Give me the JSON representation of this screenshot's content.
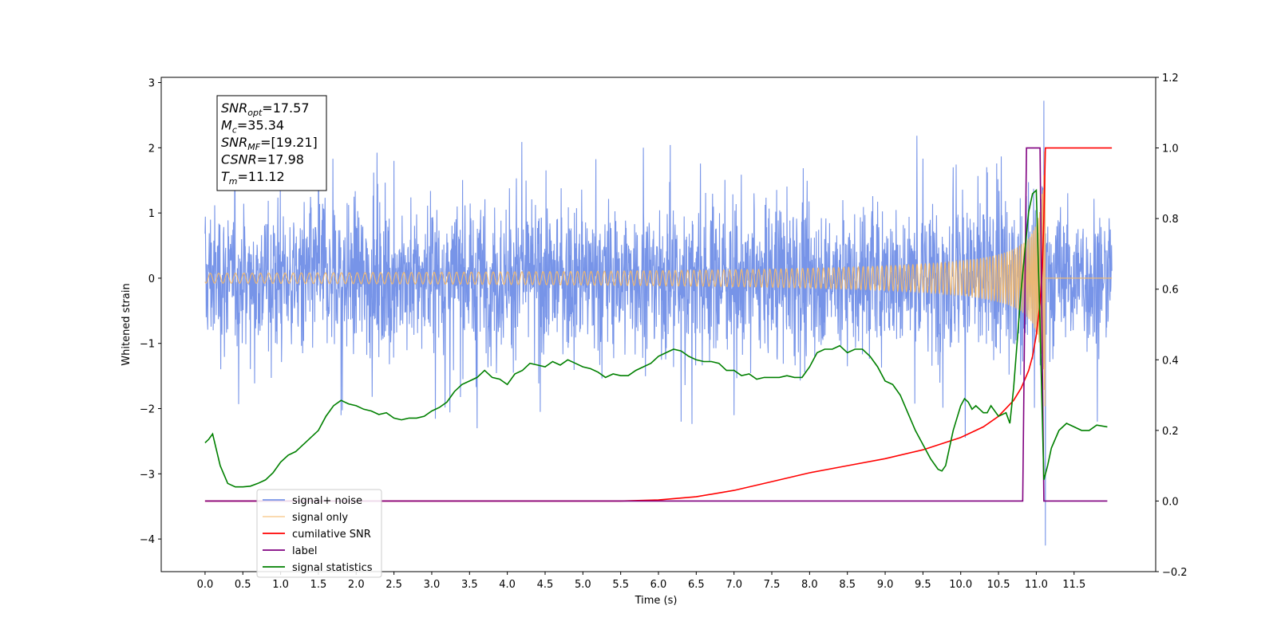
{
  "chart_data": {
    "type": "line",
    "xlabel": "Time (s)",
    "ylabel": "Whitened strain",
    "xlim": [
      -0.58,
      12.58
    ],
    "ylim": [
      -4.5,
      3.08
    ],
    "ylim_right": [
      -0.2,
      1.2
    ],
    "x_ticks": [
      "0.0",
      "0.5",
      "1.0",
      "1.5",
      "2.0",
      "2.5",
      "3.0",
      "3.5",
      "4.0",
      "4.5",
      "5.0",
      "5.5",
      "6.0",
      "6.5",
      "7.0",
      "7.5",
      "8.0",
      "8.5",
      "9.0",
      "9.5",
      "10.0",
      "10.5",
      "11.0",
      "11.5"
    ],
    "y_ticks_left": [
      "3",
      "2",
      "1",
      "0",
      "−1",
      "−2",
      "−3",
      "−4"
    ],
    "y_ticks_right": [
      "1.2",
      "1.0",
      "0.8",
      "0.6",
      "0.4",
      "0.2",
      "0.0",
      "−0.2"
    ],
    "grid": false,
    "legend_position": "lower-left",
    "info_box": {
      "lines": [
        {
          "base": "SNR",
          "sub": "opt",
          "value": "=17.57"
        },
        {
          "base": "M",
          "sub": "c",
          "value": "=35.34"
        },
        {
          "base": "SNR",
          "sub": "MF",
          "value": "=[19.21]"
        },
        {
          "base": "CSNR",
          "sub": "",
          "value": "=17.98"
        },
        {
          "base": "T",
          "sub": "m",
          "value": "=11.12"
        }
      ]
    },
    "series": [
      {
        "name": "signal+ noise",
        "axis": "left",
        "color": "#6b8be6",
        "note_range": {
          "x_start": 0.0,
          "x_end": 12.0
        },
        "envelope_typical": [
          -1.3,
          1.4
        ],
        "spike_points": [
          [
            1.5,
            1.5
          ],
          [
            1.8,
            -2.1
          ],
          [
            2.5,
            1.8
          ],
          [
            3.6,
            -2.3
          ],
          [
            5.8,
            2.0
          ],
          [
            6.3,
            -2.2
          ],
          [
            7.0,
            -2.1
          ],
          [
            9.9,
            1.7
          ],
          [
            11.1,
            2.72
          ],
          [
            11.12,
            -4.1
          ]
        ]
      },
      {
        "name": "signal only",
        "axis": "left",
        "color": "#f5b969",
        "chirp": {
          "t_merge": 11.12,
          "amp_peak": 2.45,
          "start_visible": 8.5
        }
      },
      {
        "name": "cumilative SNR",
        "axis": "right",
        "color": "#ff0000",
        "x": [
          0.0,
          5.5,
          6.0,
          6.5,
          7.0,
          7.5,
          8.0,
          8.5,
          9.0,
          9.5,
          10.0,
          10.3,
          10.5,
          10.7,
          10.8,
          10.9,
          10.95,
          11.0,
          11.05,
          11.08,
          11.1,
          11.12,
          12.0
        ],
        "y": [
          0.0,
          0.0,
          0.003,
          0.012,
          0.03,
          0.055,
          0.08,
          0.1,
          0.12,
          0.145,
          0.18,
          0.21,
          0.24,
          0.285,
          0.32,
          0.37,
          0.41,
          0.47,
          0.56,
          0.66,
          0.8,
          1.0,
          1.0
        ]
      },
      {
        "name": "label",
        "axis": "right",
        "color": "#800080",
        "x": [
          0.0,
          10.82,
          10.87,
          11.05,
          11.1,
          11.94
        ],
        "y": [
          0.0,
          0.0,
          1.0,
          1.0,
          0.0,
          0.0
        ]
      },
      {
        "name": "signal statistics",
        "axis": "right",
        "color": "#008000",
        "x": [
          0.0,
          0.05,
          0.1,
          0.2,
          0.3,
          0.4,
          0.5,
          0.6,
          0.7,
          0.8,
          0.9,
          1.0,
          1.1,
          1.2,
          1.3,
          1.4,
          1.5,
          1.6,
          1.7,
          1.8,
          1.9,
          2.0,
          2.1,
          2.2,
          2.3,
          2.4,
          2.5,
          2.6,
          2.7,
          2.8,
          2.9,
          3.0,
          3.1,
          3.2,
          3.3,
          3.4,
          3.5,
          3.6,
          3.7,
          3.8,
          3.9,
          4.0,
          4.1,
          4.2,
          4.3,
          4.4,
          4.5,
          4.6,
          4.7,
          4.8,
          4.9,
          5.0,
          5.1,
          5.2,
          5.3,
          5.4,
          5.5,
          5.6,
          5.7,
          5.8,
          5.9,
          6.0,
          6.1,
          6.2,
          6.3,
          6.4,
          6.5,
          6.6,
          6.7,
          6.8,
          6.9,
          7.0,
          7.1,
          7.2,
          7.3,
          7.4,
          7.5,
          7.6,
          7.7,
          7.8,
          7.9,
          8.0,
          8.1,
          8.2,
          8.3,
          8.4,
          8.5,
          8.6,
          8.7,
          8.8,
          8.9,
          9.0,
          9.1,
          9.2,
          9.3,
          9.4,
          9.5,
          9.6,
          9.7,
          9.75,
          9.8,
          9.9,
          10.0,
          10.05,
          10.1,
          10.15,
          10.2,
          10.3,
          10.35,
          10.4,
          10.5,
          10.6,
          10.65,
          10.7,
          10.8,
          10.9,
          10.95,
          11.0,
          11.05,
          11.1,
          11.15,
          11.2,
          11.3,
          11.4,
          11.5,
          11.6,
          11.7,
          11.8,
          11.94
        ],
        "y": [
          0.165,
          0.175,
          0.19,
          0.1,
          0.05,
          0.04,
          0.04,
          0.042,
          0.05,
          0.06,
          0.08,
          0.11,
          0.13,
          0.14,
          0.16,
          0.18,
          0.2,
          0.24,
          0.27,
          0.285,
          0.275,
          0.27,
          0.26,
          0.255,
          0.245,
          0.25,
          0.235,
          0.23,
          0.235,
          0.235,
          0.24,
          0.255,
          0.265,
          0.28,
          0.31,
          0.33,
          0.34,
          0.35,
          0.37,
          0.35,
          0.345,
          0.33,
          0.36,
          0.37,
          0.39,
          0.385,
          0.38,
          0.395,
          0.385,
          0.4,
          0.39,
          0.38,
          0.375,
          0.365,
          0.35,
          0.36,
          0.355,
          0.355,
          0.37,
          0.38,
          0.39,
          0.41,
          0.42,
          0.43,
          0.425,
          0.41,
          0.4,
          0.395,
          0.395,
          0.39,
          0.37,
          0.37,
          0.355,
          0.36,
          0.345,
          0.35,
          0.35,
          0.35,
          0.355,
          0.35,
          0.35,
          0.38,
          0.42,
          0.43,
          0.43,
          0.44,
          0.42,
          0.43,
          0.43,
          0.41,
          0.38,
          0.34,
          0.33,
          0.3,
          0.25,
          0.2,
          0.16,
          0.12,
          0.09,
          0.085,
          0.1,
          0.2,
          0.27,
          0.29,
          0.28,
          0.26,
          0.27,
          0.25,
          0.25,
          0.27,
          0.24,
          0.25,
          0.22,
          0.32,
          0.6,
          0.82,
          0.87,
          0.88,
          0.5,
          0.06,
          0.1,
          0.15,
          0.2,
          0.22,
          0.21,
          0.2,
          0.2,
          0.215,
          0.21
        ]
      }
    ]
  }
}
